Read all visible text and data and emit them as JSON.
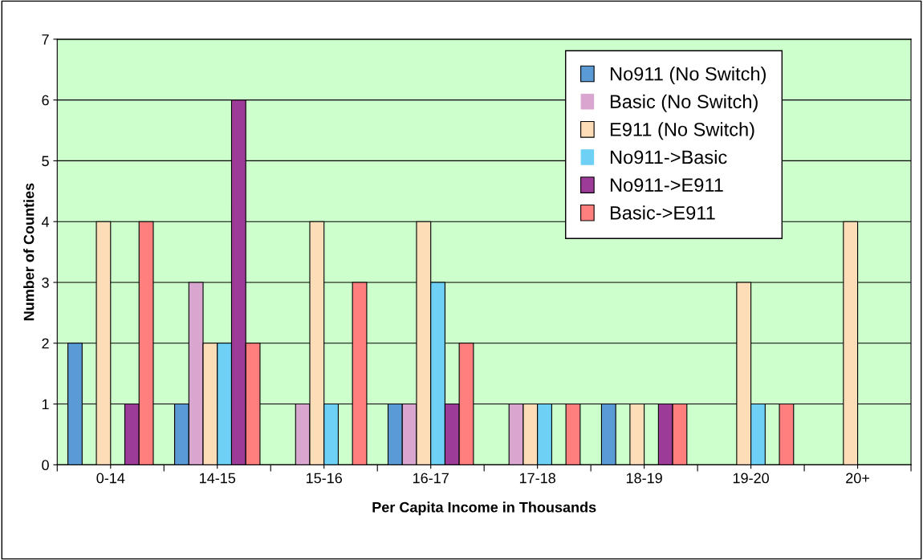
{
  "chart_data": {
    "type": "bar",
    "xlabel": "Per Capita Income in Thousands",
    "ylabel": "Number of Counties",
    "categories": [
      "0-14",
      "14-15",
      "15-16",
      "16-17",
      "17-18",
      "18-19",
      "19-20",
      "20+"
    ],
    "series": [
      {
        "name": "No911 (No Switch)",
        "color": "#5b9bd5",
        "values": [
          2,
          1,
          0,
          1,
          0,
          1,
          0,
          0
        ]
      },
      {
        "name": "Basic (No Switch)",
        "color": "#d8a6cf",
        "values": [
          0,
          3,
          1,
          1,
          1,
          0,
          0,
          0
        ]
      },
      {
        "name": "E911 (No Switch)",
        "color": "#fddcb8",
        "values": [
          4,
          2,
          4,
          4,
          1,
          1,
          3,
          4
        ]
      },
      {
        "name": "No911->Basic",
        "color": "#6fd0f5",
        "values": [
          0,
          2,
          1,
          3,
          1,
          0,
          1,
          0
        ]
      },
      {
        "name": "No911->E911",
        "color": "#9c3c98",
        "values": [
          1,
          6,
          0,
          1,
          0,
          1,
          0,
          0
        ]
      },
      {
        "name": "Basic->E911",
        "color": "#ff7f7f",
        "values": [
          4,
          2,
          3,
          2,
          1,
          1,
          1,
          0
        ]
      }
    ],
    "ylim": [
      0,
      7
    ],
    "yticks": [
      0,
      1,
      2,
      3,
      4,
      5,
      6,
      7
    ],
    "grid": "y",
    "legend": "top right"
  }
}
